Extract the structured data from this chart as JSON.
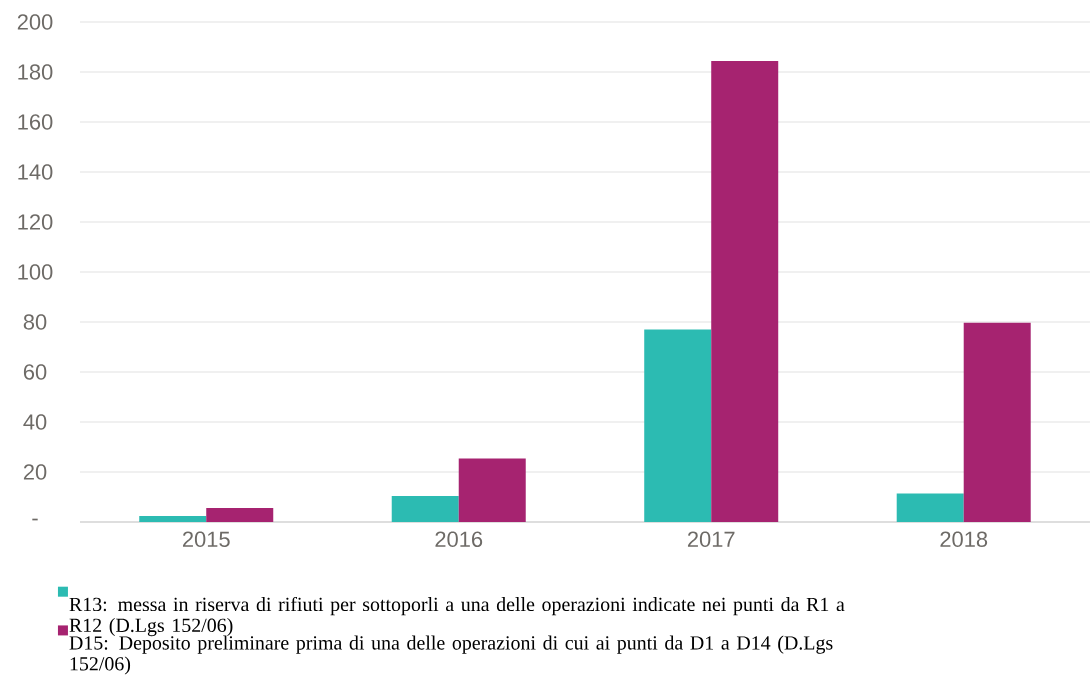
{
  "chart_data": {
    "type": "bar",
    "categories": [
      "2015",
      "2016",
      "2017",
      "2018"
    ],
    "series": [
      {
        "name": "R13: messa in riserva di rifiuti per sottoporli a una delle operazioni indicate nei punti da R1 a R12 (D.Lgs 152/06)",
        "color": "#2cbbb2",
        "values": [
          2.4,
          10.4,
          77,
          11.4
        ]
      },
      {
        "name": "D15: Deposito preliminare prima di una delle operazioni di cui ai punti da D1 a D14 (D.Lgs 152/06)",
        "color": "#a62370",
        "values": [
          5.6,
          25.4,
          184.4,
          79.7
        ]
      }
    ],
    "ylim": [
      0,
      200
    ],
    "yticks": [
      {
        "value": 0,
        "label": "-"
      },
      20,
      40,
      60,
      80,
      100,
      120,
      140,
      160,
      180,
      200
    ],
    "grid": "y",
    "legend": "bottom"
  }
}
